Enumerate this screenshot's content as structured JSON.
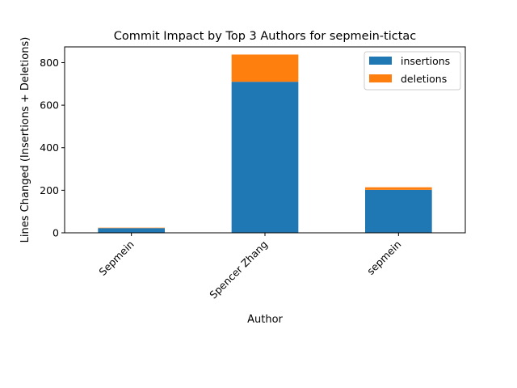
{
  "chart_data": {
    "type": "bar",
    "stacked": true,
    "title": "Commit Impact by Top 3 Authors for sepmein-tictac",
    "xlabel": "Author",
    "ylabel": "Lines Changed (Insertions + Deletions)",
    "categories": [
      "Sepmein",
      "Spencer Zhang",
      "sepmein"
    ],
    "series": [
      {
        "name": "insertions",
        "values": [
          22,
          710,
          202
        ],
        "color": "#1f77b4"
      },
      {
        "name": "deletions",
        "values": [
          2,
          128,
          12
        ],
        "color": "#ff7f0e"
      }
    ],
    "ylim": [
      0,
      874
    ],
    "yticks": [
      0,
      200,
      400,
      600,
      800
    ],
    "grid": false,
    "legend": "top-right"
  }
}
